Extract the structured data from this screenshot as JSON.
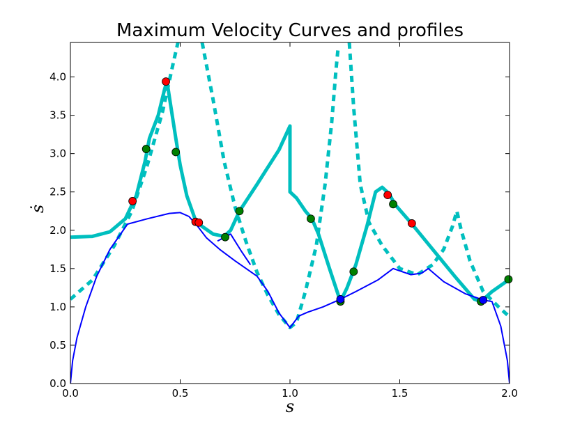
{
  "chart_data": {
    "type": "line",
    "title": "Maximum Velocity Curves and profiles",
    "xlabel": "s",
    "ylabel": "ṡ",
    "xlim": [
      0.0,
      2.0
    ],
    "ylim": [
      0.0,
      4.45
    ],
    "xticks": [
      "0.0",
      "0.5",
      "1.0",
      "1.5",
      "2.0"
    ],
    "yticks": [
      "0.0",
      "0.5",
      "1.0",
      "1.5",
      "2.0",
      "2.5",
      "3.0",
      "3.5",
      "4.0"
    ],
    "grid": false,
    "legend": "none",
    "colors": {
      "cyan": "#00bfbf",
      "blue": "#0000ff",
      "red": "#ff0000",
      "green": "#008000"
    },
    "series": [
      {
        "style": "dashed-thick-cyan",
        "segments": [
          [
            [
              0.0,
              1.1
            ],
            [
              0.1,
              1.35
            ],
            [
              0.2,
              1.8
            ],
            [
              0.28,
              2.25
            ],
            [
              0.35,
              2.85
            ],
            [
              0.42,
              3.55
            ],
            [
              0.47,
              4.2
            ],
            [
              0.49,
              4.45
            ]
          ],
          [
            [
              0.6,
              4.45
            ],
            [
              0.65,
              3.7
            ],
            [
              0.7,
              2.9
            ],
            [
              0.75,
              2.3
            ],
            [
              0.8,
              1.85
            ],
            [
              0.85,
              1.45
            ],
            [
              0.9,
              1.15
            ],
            [
              0.95,
              0.9
            ],
            [
              1.0,
              0.73
            ],
            [
              1.03,
              0.8
            ],
            [
              1.07,
              1.2
            ],
            [
              1.12,
              1.8
            ],
            [
              1.16,
              2.6
            ],
            [
              1.19,
              3.4
            ],
            [
              1.21,
              4.1
            ],
            [
              1.22,
              4.4
            ]
          ],
          [
            [
              1.27,
              4.45
            ],
            [
              1.29,
              3.6
            ],
            [
              1.32,
              2.6
            ],
            [
              1.36,
              2.1
            ],
            [
              1.42,
              1.8
            ],
            [
              1.5,
              1.5
            ],
            [
              1.58,
              1.42
            ],
            [
              1.65,
              1.55
            ],
            [
              1.7,
              1.75
            ],
            [
              1.74,
              2.05
            ],
            [
              1.76,
              2.25
            ],
            [
              1.78,
              2.0
            ],
            [
              1.82,
              1.6
            ],
            [
              1.88,
              1.2
            ],
            [
              1.95,
              1.0
            ],
            [
              2.0,
              0.87
            ]
          ]
        ]
      },
      {
        "style": "solid-thick-cyan",
        "segments": [
          [
            [
              0.0,
              1.91
            ],
            [
              0.1,
              1.92
            ],
            [
              0.18,
              1.98
            ],
            [
              0.25,
              2.15
            ],
            [
              0.3,
              2.45
            ],
            [
              0.34,
              2.9
            ],
            [
              0.36,
              3.2
            ],
            [
              0.4,
              3.5
            ],
            [
              0.43,
              3.85
            ],
            [
              0.44,
              3.94
            ],
            [
              0.45,
              3.75
            ],
            [
              0.48,
              3.2
            ],
            [
              0.5,
              2.85
            ],
            [
              0.53,
              2.45
            ],
            [
              0.57,
              2.13
            ],
            [
              0.6,
              2.05
            ],
            [
              0.65,
              1.95
            ],
            [
              0.7,
              1.92
            ],
            [
              0.73,
              2.0
            ],
            [
              0.77,
              2.25
            ],
            [
              0.85,
              2.6
            ],
            [
              0.95,
              3.05
            ],
            [
              1.0,
              3.36
            ],
            [
              1.0,
              2.5
            ],
            [
              1.03,
              2.42
            ],
            [
              1.07,
              2.25
            ],
            [
              1.1,
              2.15
            ],
            [
              1.13,
              1.95
            ],
            [
              1.18,
              1.5
            ],
            [
              1.23,
              1.07
            ],
            [
              1.26,
              1.25
            ],
            [
              1.3,
              1.55
            ],
            [
              1.35,
              2.05
            ],
            [
              1.39,
              2.5
            ],
            [
              1.42,
              2.56
            ],
            [
              1.45,
              2.48
            ],
            [
              1.48,
              2.33
            ],
            [
              1.55,
              2.1
            ],
            [
              1.65,
              1.75
            ],
            [
              1.75,
              1.4
            ],
            [
              1.84,
              1.1
            ],
            [
              1.87,
              1.07
            ],
            [
              1.92,
              1.2
            ],
            [
              2.0,
              1.36
            ]
          ]
        ]
      },
      {
        "style": "solid-thin-blue",
        "segments": [
          [
            [
              0.0,
              0.0
            ],
            [
              0.01,
              0.3
            ],
            [
              0.03,
              0.6
            ],
            [
              0.07,
              1.0
            ],
            [
              0.12,
              1.4
            ],
            [
              0.18,
              1.75
            ],
            [
              0.26,
              2.08
            ],
            [
              0.35,
              2.15
            ],
            [
              0.45,
              2.22
            ],
            [
              0.5,
              2.23
            ],
            [
              0.54,
              2.18
            ],
            [
              0.58,
              2.05
            ],
            [
              0.62,
              1.9
            ],
            [
              0.68,
              1.75
            ],
            [
              0.75,
              1.6
            ],
            [
              0.85,
              1.4
            ],
            [
              0.9,
              1.2
            ],
            [
              0.95,
              0.92
            ],
            [
              1.0,
              0.73
            ],
            [
              1.04,
              0.88
            ],
            [
              1.08,
              0.93
            ],
            [
              1.15,
              1.0
            ],
            [
              1.23,
              1.1
            ],
            [
              1.3,
              1.2
            ],
            [
              1.4,
              1.35
            ],
            [
              1.47,
              1.5
            ],
            [
              1.55,
              1.42
            ],
            [
              1.6,
              1.44
            ],
            [
              1.63,
              1.5
            ],
            [
              1.7,
              1.33
            ],
            [
              1.8,
              1.17
            ],
            [
              1.88,
              1.09
            ],
            [
              1.92,
              1.07
            ],
            [
              1.96,
              0.75
            ],
            [
              1.99,
              0.3
            ],
            [
              2.0,
              0.0
            ]
          ],
          [
            [
              0.67,
              1.86
            ],
            [
              0.73,
              1.95
            ],
            [
              0.78,
              1.72
            ],
            [
              0.82,
              1.55
            ]
          ]
        ]
      }
    ],
    "markers": {
      "red": [
        [
          0.283,
          2.38
        ],
        [
          0.435,
          3.94
        ],
        [
          0.57,
          2.11
        ],
        [
          0.585,
          2.1
        ],
        [
          1.445,
          2.46
        ],
        [
          1.555,
          2.09
        ]
      ],
      "green": [
        [
          0.345,
          3.06
        ],
        [
          0.48,
          3.02
        ],
        [
          0.705,
          1.91
        ],
        [
          0.77,
          2.25
        ],
        [
          1.095,
          2.15
        ],
        [
          1.23,
          1.07
        ],
        [
          1.29,
          1.46
        ],
        [
          1.47,
          2.34
        ],
        [
          1.87,
          1.07
        ],
        [
          1.995,
          1.36
        ]
      ],
      "blue": [
        [
          1.23,
          1.1
        ],
        [
          1.88,
          1.09
        ]
      ]
    }
  }
}
